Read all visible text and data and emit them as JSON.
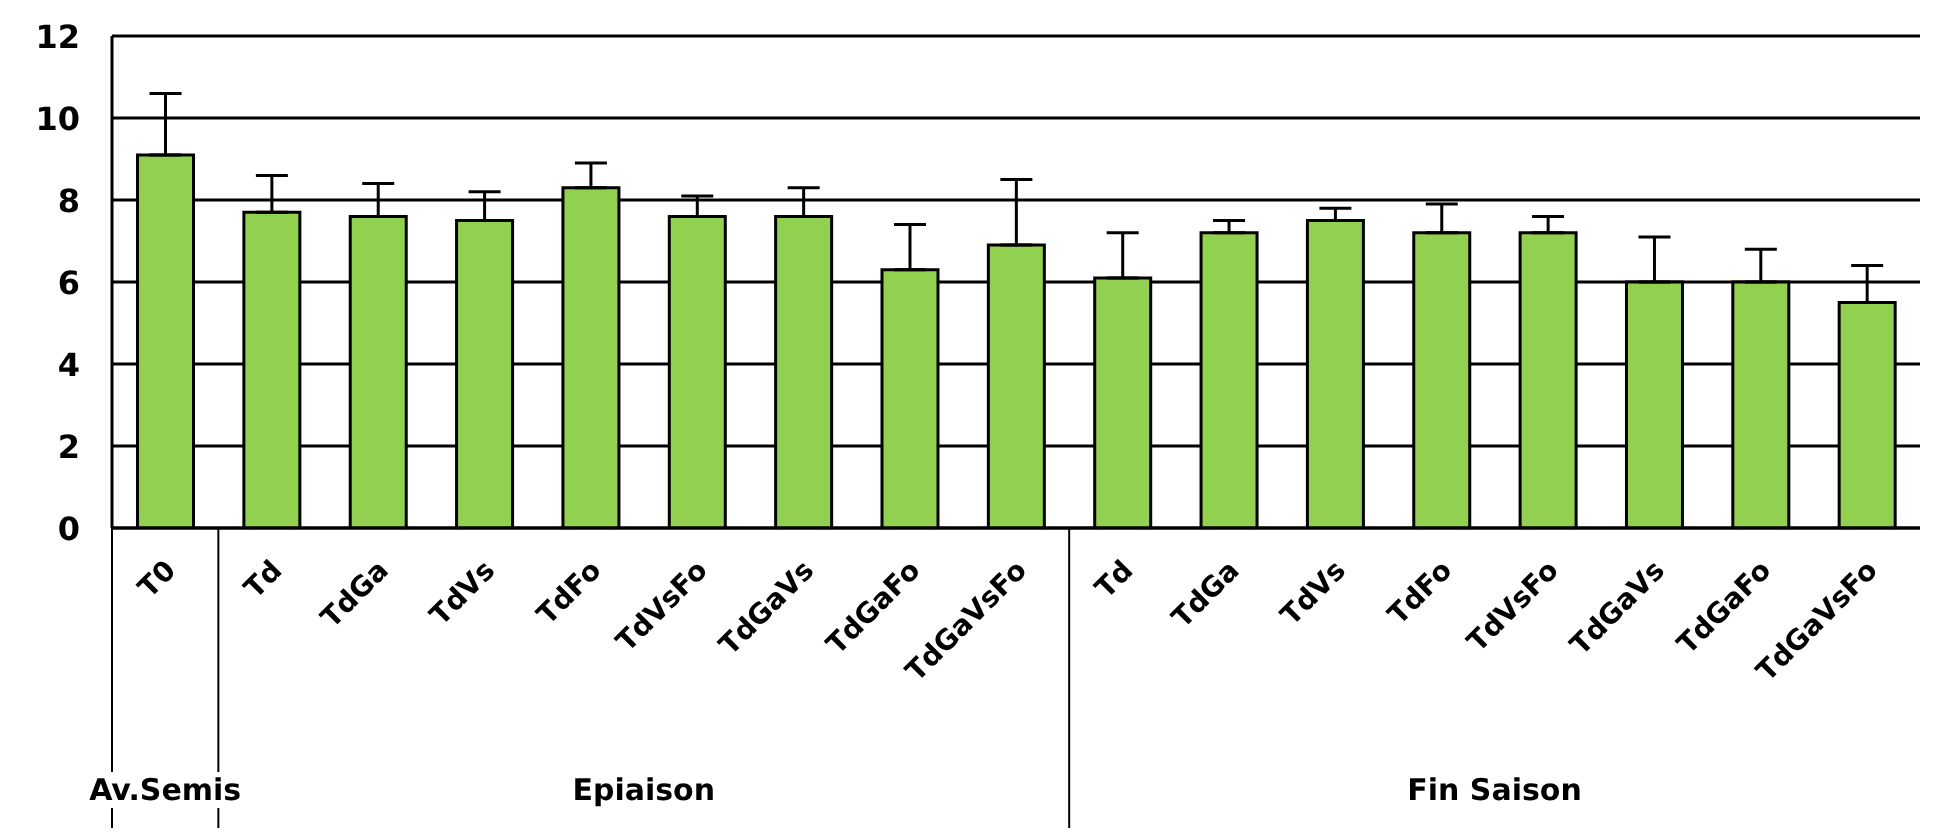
{
  "chart_data": {
    "type": "bar",
    "categories": [
      "T0",
      "Td",
      "TdGa",
      "TdVs",
      "TdFo",
      "TdVsFo",
      "TdGaVs",
      "TdGaFo",
      "TdGaVsFo",
      "Td",
      "TdGa",
      "TdVs",
      "TdFo",
      "TdVsFo",
      "TdGaVs",
      "TdGaFo",
      "TdGaVsFo"
    ],
    "values": [
      9.1,
      7.7,
      7.6,
      7.5,
      8.3,
      7.6,
      7.6,
      6.3,
      6.9,
      6.1,
      7.2,
      7.5,
      7.2,
      7.2,
      6.0,
      6.0,
      5.5
    ],
    "errors": [
      [
        9.1,
        10.6
      ],
      [
        7.7,
        8.6
      ],
      [
        7.6,
        8.4
      ],
      [
        7.5,
        8.2
      ],
      [
        8.3,
        8.9
      ],
      [
        7.6,
        8.1
      ],
      [
        7.6,
        8.3
      ],
      [
        6.3,
        7.4
      ],
      [
        6.9,
        8.5
      ],
      [
        6.1,
        7.2
      ],
      [
        7.2,
        7.5
      ],
      [
        7.5,
        7.8
      ],
      [
        7.2,
        7.9
      ],
      [
        7.2,
        7.6
      ],
      [
        6.0,
        7.1
      ],
      [
        6.0,
        6.8
      ],
      [
        5.5,
        6.4
      ]
    ],
    "color": "#92d050",
    "ylim": [
      0,
      12
    ],
    "yticks": [
      0,
      2,
      4,
      6,
      8,
      10,
      12
    ],
    "grid": "y",
    "annotations": [
      "Av.Semis",
      "Epiaison",
      "Fin Saison"
    ]
  }
}
